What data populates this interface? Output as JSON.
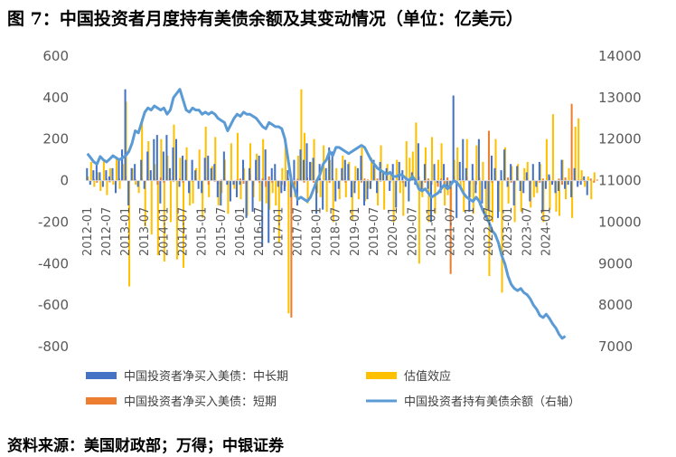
{
  "figure": {
    "title": "图 7：中国投资者月度持有美债余额及其变动情况（单位：亿美元）",
    "source": "资料来源：美国财政部；万得；中银证券"
  },
  "chart_data": {
    "type": "bar+line",
    "x_start": "2012-01",
    "x_labels": [
      "2012-01",
      "2012-07",
      "2013-01",
      "2013-07",
      "2014-01",
      "2014-07",
      "2015-01",
      "2015-07",
      "2016-01",
      "2016-07",
      "2017-01",
      "2017-07",
      "2018-01",
      "2018-07",
      "2019-01",
      "2019-07",
      "2020-01",
      "2020-07",
      "2021-01",
      "2021-07",
      "2022-01",
      "2022-07",
      "2023-01",
      "2023-07",
      "2024-01"
    ],
    "y_left": {
      "min": -800,
      "max": 600,
      "step": 200,
      "ticks": [
        "-800",
        "-600",
        "-400",
        "-200",
        "0",
        "200",
        "400",
        "600"
      ]
    },
    "y_right": {
      "min": 7000,
      "max": 14000,
      "step": 1000,
      "ticks": [
        "7000",
        "8000",
        "9000",
        "10000",
        "11000",
        "12000",
        "13000",
        "14000"
      ]
    },
    "grid": false,
    "legend_position": "bottom",
    "series": [
      {
        "name": "中国投资者净买入美债：中长期",
        "kind": "bar",
        "axis": "left",
        "color": "#4472C4",
        "values": [
          60,
          -20,
          50,
          80,
          40,
          -30,
          50,
          20,
          60,
          -60,
          100,
          150,
          440,
          -120,
          60,
          80,
          -30,
          100,
          -40,
          140,
          50,
          200,
          220,
          -110,
          140,
          220,
          60,
          160,
          200,
          -30,
          120,
          100,
          -60,
          100,
          50,
          -40,
          -60,
          110,
          120,
          60,
          80,
          -80,
          -120,
          140,
          -20,
          -100,
          -20,
          -80,
          -20,
          100,
          -180,
          60,
          -150,
          100,
          120,
          -320,
          150,
          -300,
          60,
          80,
          -30,
          -60,
          -50,
          50,
          -80,
          100,
          -120,
          150,
          100,
          180,
          90,
          110,
          -160,
          80,
          -140,
          60,
          160,
          140,
          -100,
          -40,
          60,
          100,
          80,
          -80,
          -60,
          60,
          120,
          -120,
          -90,
          -40,
          100,
          -60,
          90,
          40,
          60,
          -50,
          80,
          -130,
          90,
          50,
          -30,
          -100,
          40,
          -20,
          180,
          -50,
          80,
          -40,
          -200,
          80,
          -10,
          -60,
          80,
          -40,
          -40,
          410,
          -180,
          90,
          200,
          60,
          -150,
          80,
          -60,
          200,
          -110,
          -40,
          -140,
          120,
          60,
          -180,
          50,
          150,
          -30,
          80,
          -120,
          70,
          -50,
          -60,
          40,
          -100,
          80,
          -30,
          90,
          -150,
          -40,
          30,
          -20,
          -60,
          -50,
          100,
          -40,
          -20,
          -80,
          60,
          -30,
          -20,
          20,
          -70
        ]
      },
      {
        "name": "中国投资者净买入美债：短期",
        "kind": "bar",
        "axis": "left",
        "color": "#ED7D31",
        "values": [
          10,
          -5,
          8,
          -10,
          5,
          0,
          10,
          -8,
          5,
          -5,
          10,
          0,
          20,
          -10,
          5,
          8,
          -5,
          10,
          -10,
          5,
          0,
          10,
          -20,
          15,
          -10,
          5,
          10,
          -5,
          0,
          10,
          -10,
          5,
          0,
          -5,
          10,
          0,
          -5,
          15,
          -20,
          10,
          -5,
          -20,
          5,
          10,
          -5,
          0,
          -10,
          5,
          10,
          -15,
          -10,
          30,
          -25,
          15,
          -10,
          10,
          -30,
          20,
          -10,
          5,
          -10,
          -20,
          -30,
          10,
          -660,
          -20,
          10,
          0,
          -10,
          15,
          5,
          -10,
          0,
          10,
          -5,
          5,
          -10,
          10,
          0,
          -5,
          10,
          -10,
          5,
          0,
          -10,
          5,
          -10,
          10,
          5,
          -5,
          0,
          10,
          -5,
          0,
          5,
          -10,
          10,
          -5,
          0,
          -10,
          5,
          0,
          15,
          -10,
          20,
          -10,
          -10,
          10,
          -20,
          5,
          -30,
          10,
          -20,
          15,
          -450,
          20,
          -10,
          10,
          -5,
          20,
          -15,
          10,
          -20,
          15,
          0,
          -10,
          240,
          -10,
          10,
          -20,
          5,
          0,
          15,
          -10,
          -20,
          10,
          0,
          -5,
          10,
          -15,
          5,
          0,
          -10,
          10,
          -5,
          20,
          -10,
          0,
          10,
          -20,
          15,
          -5,
          370,
          10,
          -10,
          5,
          -5,
          0,
          10,
          -10,
          5
        ]
      },
      {
        "name": "估值效应",
        "kind": "bar",
        "axis": "left",
        "color": "#FFC000",
        "values": [
          20,
          90,
          -30,
          40,
          -50,
          100,
          -70,
          60,
          -20,
          110,
          -40,
          80,
          380,
          -510,
          60,
          -20,
          -60,
          300,
          -220,
          190,
          -260,
          80,
          -360,
          200,
          -390,
          120,
          -200,
          270,
          -380,
          110,
          -420,
          160,
          -120,
          -110,
          60,
          150,
          -180,
          260,
          -80,
          70,
          210,
          -120,
          -60,
          100,
          -160,
          180,
          -40,
          230,
          -90,
          60,
          -170,
          180,
          -80,
          130,
          -100,
          200,
          -110,
          -140,
          -60,
          -120,
          -300,
          60,
          180,
          -640,
          -30,
          -80,
          120,
          440,
          230,
          -110,
          90,
          200,
          -60,
          -80,
          170,
          -150,
          100,
          -200,
          60,
          -90,
          120,
          -80,
          90,
          -190,
          70,
          -90,
          160,
          -100,
          -40,
          110,
          60,
          -120,
          170,
          -140,
          80,
          40,
          -200,
          100,
          -60,
          -170,
          190,
          110,
          140,
          280,
          -400,
          -80,
          160,
          -200,
          210,
          -160,
          100,
          180,
          -120,
          -70,
          -150,
          100,
          160,
          -40,
          -150,
          200,
          -80,
          -160,
          170,
          -120,
          90,
          -180,
          -460,
          -200,
          200,
          -150,
          -540,
          160,
          -110,
          70,
          -200,
          80,
          -150,
          60,
          90,
          -130,
          -80,
          -60,
          80,
          -200,
          200,
          -140,
          320,
          -150,
          -170,
          100,
          -90,
          60,
          -180,
          260,
          300,
          50,
          -30,
          20,
          -90,
          40
        ]
      },
      {
        "name": "中国投资者持有美债余额（右轴）",
        "kind": "line",
        "axis": "right",
        "color": "#5B9BD5",
        "values": [
          11650,
          11550,
          11450,
          11400,
          11580,
          11500,
          11450,
          11520,
          11600,
          11550,
          11500,
          11550,
          11600,
          11700,
          11900,
          12200,
          12150,
          12400,
          12650,
          12750,
          12700,
          12800,
          12750,
          12700,
          12750,
          12600,
          12700,
          13000,
          13100,
          13200,
          12950,
          12700,
          12650,
          12750,
          12700,
          12700,
          12600,
          12650,
          12600,
          12650,
          12600,
          12500,
          12450,
          12400,
          12200,
          12350,
          12500,
          12600,
          12550,
          12650,
          12600,
          12600,
          12550,
          12500,
          12400,
          12300,
          12250,
          12400,
          12350,
          12300,
          12300,
          12250,
          12000,
          11500,
          11000,
          10800,
          10550,
          10600,
          10550,
          10500,
          10600,
          10800,
          11000,
          11150,
          11400,
          11500,
          11700,
          11600,
          11800,
          11800,
          11750,
          11700,
          11650,
          11700,
          11750,
          11800,
          11850,
          11800,
          11650,
          11500,
          11400,
          11300,
          11250,
          11200,
          11150,
          11200,
          11100,
          11100,
          11150,
          11120,
          11050,
          11000,
          11100,
          11000,
          10800,
          10750,
          10800,
          10700,
          10600,
          10650,
          10700,
          10800,
          10900,
          10800,
          10900,
          11000,
          10950,
          10850,
          10700,
          10600,
          10550,
          10500,
          10600,
          10500,
          10300,
          10150,
          10000,
          9800,
          9700,
          9500,
          9200,
          9000,
          8700,
          8500,
          8400,
          8350,
          8400,
          8300,
          8250,
          8150,
          8000,
          7900,
          7750,
          7700,
          7780,
          7680,
          7550,
          7450,
          7300,
          7200,
          7250
        ]
      }
    ]
  }
}
